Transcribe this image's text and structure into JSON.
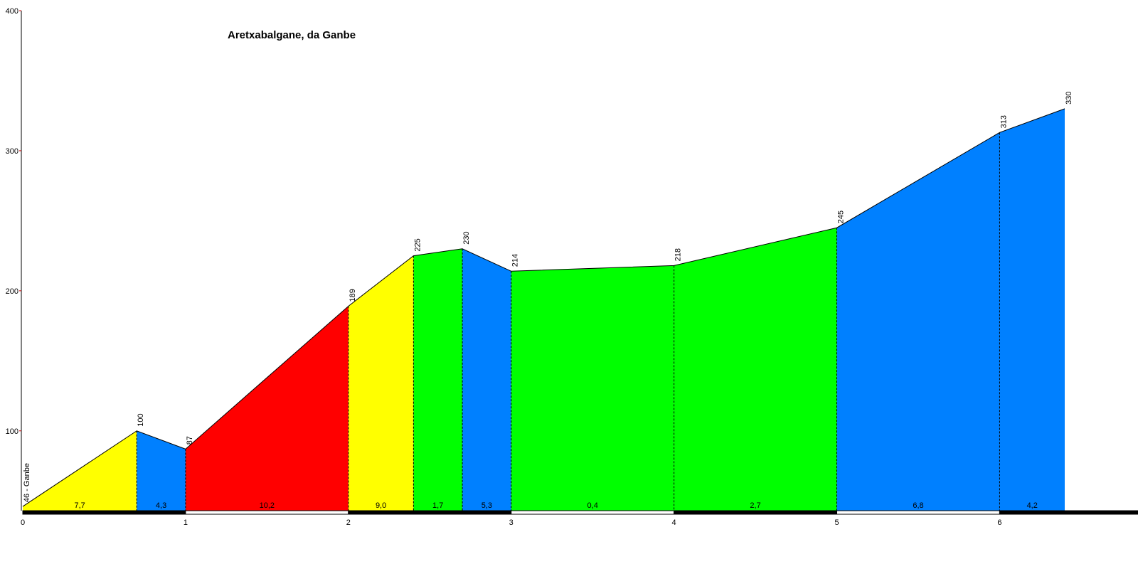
{
  "chart_data": {
    "type": "profile",
    "title": "Aretxabalgane, da Ganbe",
    "x": [
      0,
      0.7,
      1.0,
      2.0,
      2.4,
      2.7,
      3.0,
      4.0,
      5.0,
      6.0,
      6.4
    ],
    "values": [
      46,
      100,
      87,
      189,
      225,
      230,
      214,
      218,
      245,
      313,
      330
    ],
    "value_labels": [
      "46 - Ganbe",
      "100",
      "87",
      "189",
      "225",
      "230",
      "214",
      "218",
      "245",
      "313",
      "330"
    ],
    "segment_labels": [
      "7,7",
      "4,3",
      "10,2",
      "9,0",
      "1,7",
      "5,3",
      "0,4",
      "2,7",
      "6,8",
      "4,2"
    ],
    "segment_colors": [
      "#ffff00",
      "#0080ff",
      "#ff0000",
      "#ffff00",
      "#00ff00",
      "#0080ff",
      "#00ff00",
      "#00ff00",
      "#0080ff",
      "#0080ff"
    ],
    "xlim": [
      0,
      6.85
    ],
    "xticks": [
      0,
      1,
      2,
      3,
      4,
      5,
      6
    ],
    "ylim": [
      43,
      400
    ],
    "yticks": [
      100,
      200,
      300,
      400
    ]
  }
}
